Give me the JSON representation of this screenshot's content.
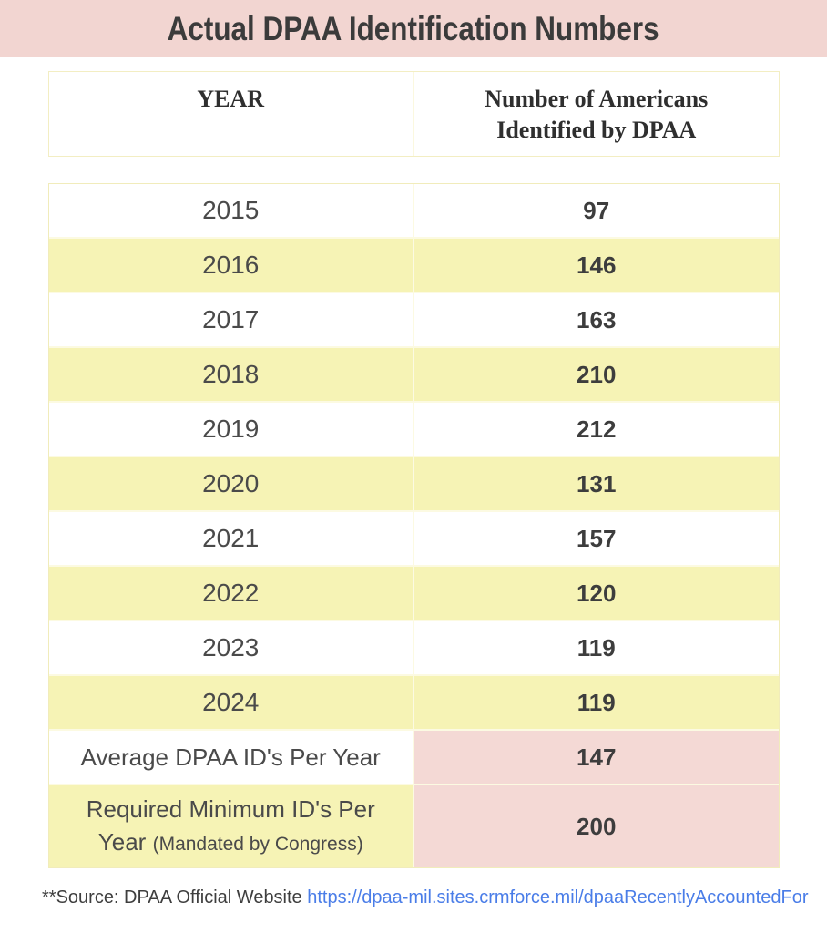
{
  "title": "Actual DPAA Identification Numbers",
  "header": {
    "year_label": "YEAR",
    "number_label_line1": "Number of Americans",
    "number_label_line2": "Identified by DPAA"
  },
  "rows": [
    {
      "year": "2015",
      "value": "97"
    },
    {
      "year": "2016",
      "value": "146"
    },
    {
      "year": "2017",
      "value": "163"
    },
    {
      "year": "2018",
      "value": "210"
    },
    {
      "year": "2019",
      "value": "212"
    },
    {
      "year": "2020",
      "value": "131"
    },
    {
      "year": "2021",
      "value": "157"
    },
    {
      "year": "2022",
      "value": "120"
    },
    {
      "year": "2023",
      "value": "119"
    },
    {
      "year": "2024",
      "value": "119"
    }
  ],
  "summary": [
    {
      "label": "Average DPAA ID's Per Year",
      "value": "147"
    },
    {
      "label": "Required Minimum ID's Per Year",
      "note": "(Mandated by Congress)",
      "value": "200"
    }
  ],
  "footer": {
    "source_prefix": "**Source: DPAA Official Website",
    "link_text": "https://dpaa-mil.sites.crmforce.mil/dpaaRecentlyAccountedFor"
  },
  "colors": {
    "title_band_pink": "#F2D5D1",
    "row_yellow": "#F6F3B5",
    "summary_cell_pink": "#F4D9D5",
    "link_blue": "#4A7DE8"
  },
  "chart_data": {
    "type": "table",
    "title": "Actual DPAA Identification Numbers",
    "columns": [
      "YEAR",
      "Number of Americans Identified by DPAA"
    ],
    "categories": [
      "2015",
      "2016",
      "2017",
      "2018",
      "2019",
      "2020",
      "2021",
      "2022",
      "2023",
      "2024"
    ],
    "values": [
      97,
      146,
      163,
      210,
      212,
      131,
      157,
      120,
      119,
      119
    ],
    "summary": [
      {
        "label": "Average DPAA ID's Per Year",
        "value": 147
      },
      {
        "label": "Required Minimum ID's Per Year (Mandated by Congress)",
        "value": 200
      }
    ],
    "source": "**Source: DPAA Official Website https://dpaa-mil.sites.crmforce.mil/dpaaRecentlyAccountedFor"
  }
}
